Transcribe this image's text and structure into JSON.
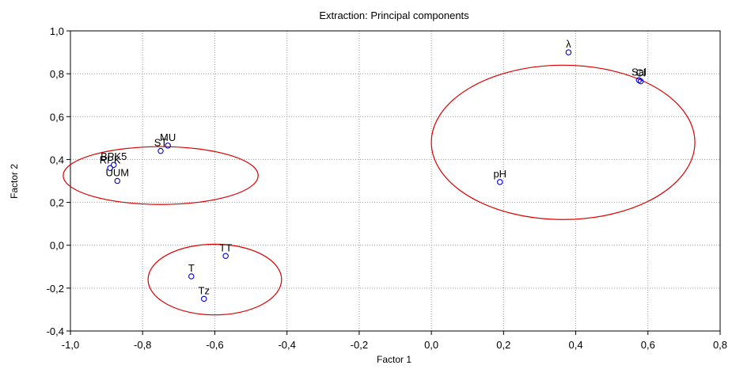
{
  "chart_data": {
    "type": "scatter",
    "title": "Extraction: Principal components",
    "xlabel": "Factor 1",
    "ylabel": "Factor 2",
    "xlim": [
      -1.0,
      0.8
    ],
    "ylim": [
      -0.4,
      1.0
    ],
    "x_ticks": [
      "-1,0",
      "-0,8",
      "-0,6",
      "-0,4",
      "-0,2",
      "0,0",
      "0,2",
      "0,4",
      "0,6",
      "0,8"
    ],
    "y_ticks": [
      "1,0",
      "0,8",
      "0,6",
      "0,4",
      "0,2",
      "0,0",
      "-0,2",
      "-0,4"
    ],
    "grid": "dotted",
    "marker_color": "#0000cc",
    "ellipse_color": "#dd0000",
    "points": [
      {
        "label": "λ",
        "x": 0.38,
        "y": 0.9
      },
      {
        "label": "Sal",
        "x": 0.575,
        "y": 0.77
      },
      {
        "label": "Cl",
        "x": 0.58,
        "y": 0.765
      },
      {
        "label": "pH",
        "x": 0.19,
        "y": 0.295
      },
      {
        "label": "MU",
        "x": -0.73,
        "y": 0.465
      },
      {
        "label": "ST",
        "x": -0.75,
        "y": 0.44
      },
      {
        "label": "BPK5",
        "x": -0.88,
        "y": 0.375
      },
      {
        "label": "RPK",
        "x": -0.89,
        "y": 0.36
      },
      {
        "label": "UUM",
        "x": -0.87,
        "y": 0.3
      },
      {
        "label": "TT",
        "x": -0.57,
        "y": -0.05
      },
      {
        "label": "T",
        "x": -0.665,
        "y": -0.145
      },
      {
        "label": "Tz",
        "x": -0.63,
        "y": -0.25
      }
    ],
    "ellipses": [
      {
        "cx": 0.365,
        "cy": 0.48,
        "rx": 0.365,
        "ry": 0.36
      },
      {
        "cx": -0.75,
        "cy": 0.325,
        "rx": 0.27,
        "ry": 0.135
      },
      {
        "cx": -0.6,
        "cy": -0.16,
        "rx": 0.185,
        "ry": 0.165
      }
    ]
  }
}
